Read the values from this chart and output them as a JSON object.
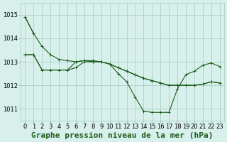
{
  "title": "Graphe pression niveau de la mer (hPa)",
  "bg_color": "#d8f0ec",
  "grid_color": "#a0c8c0",
  "line_color": "#1a5c1a",
  "xlim": [
    -0.5,
    23.5
  ],
  "ylim": [
    1010.5,
    1015.5
  ],
  "yticks": [
    1011,
    1012,
    1013,
    1014,
    1015
  ],
  "xticks": [
    0,
    1,
    2,
    3,
    4,
    5,
    6,
    7,
    8,
    9,
    10,
    11,
    12,
    13,
    14,
    15,
    16,
    17,
    18,
    19,
    20,
    21,
    22,
    23
  ],
  "series": [
    [
      1014.9,
      1014.2,
      null,
      null,
      null,
      null,
      null,
      null,
      null,
      null,
      null,
      null,
      null,
      null,
      null,
      null,
      null,
      null,
      null,
      null,
      null,
      null,
      null,
      null
    ],
    [
      1013.3,
      1013.3,
      1012.65,
      1012.65,
      1012.65,
      1012.65,
      1012.75,
      1013.0,
      1013.0,
      1013.0,
      1012.9,
      1012.75,
      1012.6,
      1012.45,
      1012.3,
      1012.2,
      1012.1,
      1012.0,
      1012.0,
      1012.0,
      1012.0,
      1012.05,
      1012.15,
      1012.1
    ],
    [
      1013.3,
      1013.3,
      1012.65,
      1012.65,
      1012.65,
      1012.65,
      1013.0,
      1013.05,
      1013.05,
      1013.0,
      1012.9,
      1012.5,
      1012.15,
      1011.5,
      1010.9,
      1010.85,
      1010.85,
      1010.85,
      1011.85,
      1012.45,
      1012.6,
      1012.85,
      1012.95,
      1012.8
    ],
    [
      1014.9,
      1014.2,
      1013.65,
      1013.3,
      1013.1,
      1013.05,
      1013.0,
      1013.05,
      1013.0,
      1013.0,
      1012.9,
      1012.75,
      1012.6,
      1012.45,
      1012.3,
      1012.2,
      1012.1,
      1012.0,
      1012.0,
      1012.0,
      1012.0,
      1012.05,
      1012.15,
      1012.1
    ]
  ],
  "title_fontsize": 8,
  "tick_fontsize": 6
}
